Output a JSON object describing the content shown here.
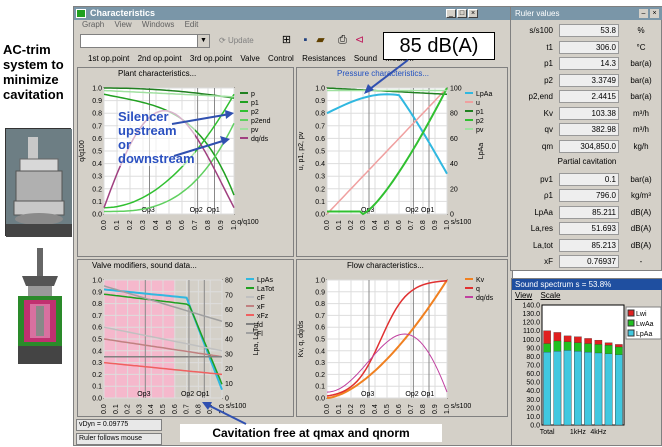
{
  "annotations": {
    "left_title": [
      "AC-trim",
      "system to",
      "minimize",
      "cavitation"
    ],
    "db_callout": "85 dB(A)",
    "silencer": [
      "Silencer",
      "upstream",
      "or",
      "downstream"
    ],
    "cavitation_free": "Cavitation free at qmax and qnorm"
  },
  "window": {
    "title": "Characteristics",
    "menu": [
      "Graph",
      "View",
      "Windows",
      "Edit"
    ],
    "update_label": "Update",
    "tabs": [
      "1st op.point",
      "2nd op.point",
      "3rd op.point",
      "Valve",
      "Control",
      "Resistances",
      "Sound",
      "Medium"
    ],
    "status": [
      "vDyn = 0.09775",
      "Ruler follows mouse"
    ]
  },
  "panels": {
    "plant": {
      "title": "Plant characteristics...",
      "ylabel": "q/q100",
      "xlabel": "q/q100",
      "yticks": [
        "1.0",
        "0.9",
        "0.8",
        "0.7",
        "0.6",
        "0.5",
        "0.4",
        "0.3",
        "0.2",
        "0.1",
        "0.0"
      ],
      "xticks": [
        "0.0",
        "0.1",
        "0.2",
        "0.3",
        "0.4",
        "0.5",
        "0.6",
        "0.7",
        "0.8",
        "0.9",
        "1.0"
      ],
      "legend": [
        "p",
        "p1",
        "p2",
        "p2end",
        "pv",
        "dq/ds"
      ],
      "op_labels": [
        "Op3",
        "Op2",
        "Op1"
      ]
    },
    "pressure": {
      "title": "Pressure characteristics...",
      "ylabel": "u, p1, p2, pv",
      "y2label": "LpAa",
      "xlabel": "s/s100",
      "yticks": [
        "1.0",
        "0.9",
        "0.8",
        "0.7",
        "0.6",
        "0.5",
        "0.4",
        "0.3",
        "0.2",
        "0.1",
        "0.0"
      ],
      "y2ticks": [
        "100",
        "80",
        "60",
        "40",
        "20",
        "0"
      ],
      "xticks": [
        "0.0",
        "0.1",
        "0.2",
        "0.3",
        "0.4",
        "0.5",
        "0.6",
        "0.7",
        "0.8",
        "0.9",
        "1.0"
      ],
      "legend": [
        "LpAa",
        "u",
        "p1",
        "p2",
        "pv"
      ],
      "op_labels": [
        "Op3",
        "Op2",
        "Op1"
      ]
    },
    "valve": {
      "title": "Valve modifiers, sound data...",
      "y2label": "Lpa, LaTot",
      "xlabel": "s/s100",
      "yticks": [
        "1.0",
        "0.9",
        "0.8",
        "0.7",
        "0.6",
        "0.5",
        "0.4",
        "0.3",
        "0.2",
        "0.1",
        "0.0"
      ],
      "y2ticks": [
        "80",
        "70",
        "60",
        "50",
        "40",
        "30",
        "20",
        "10",
        "0"
      ],
      "xticks": [
        "0.0",
        "0.1",
        "0.2",
        "0.3",
        "0.4",
        "0.5",
        "0.6",
        "0.7",
        "0.8",
        "0.9",
        "1.0"
      ],
      "legend": [
        "LpAs",
        "LaTot",
        "cF",
        "xF",
        "xFz",
        "fd",
        "Fl"
      ],
      "op_labels": [
        "Op3",
        "Op2",
        "Op1"
      ]
    },
    "flow": {
      "title": "Flow characteristics...",
      "ylabel": "Kv, q, dq/ds",
      "xlabel": "s/s100",
      "yticks": [
        "1.0",
        "0.9",
        "0.8",
        "0.7",
        "0.6",
        "0.5",
        "0.4",
        "0.3",
        "0.2",
        "0.1",
        "0.0"
      ],
      "xticks": [
        "0.0",
        "0.1",
        "0.2",
        "0.3",
        "0.4",
        "0.5",
        "0.6",
        "0.7",
        "0.8",
        "0.9",
        "1.0"
      ],
      "legend": [
        "Kv",
        "q",
        "dq/ds"
      ],
      "op_labels": [
        "Op3",
        "Op2",
        "Op1"
      ]
    }
  },
  "ruler": {
    "title": "Ruler values",
    "rows": [
      {
        "label": "s/s100",
        "value": "53.8",
        "unit": "%"
      },
      {
        "label": "t1",
        "value": "306.0",
        "unit": "°C"
      },
      {
        "label": "p1",
        "value": "14.3",
        "unit": "bar(a)"
      },
      {
        "label": "p2",
        "value": "3.3749",
        "unit": "bar(a)"
      },
      {
        "label": "p2,end",
        "value": "2.4415",
        "unit": "bar(a)"
      },
      {
        "label": "Kv",
        "value": "103.38",
        "unit": "m³/h"
      },
      {
        "label": "qv",
        "value": "382.98",
        "unit": "m³/h"
      },
      {
        "label": "qm",
        "value": "304,850.0",
        "unit": "kg/h"
      },
      {
        "label": "",
        "value": "Partial cavitation",
        "unit": ""
      },
      {
        "label": "pv1",
        "value": "0.1",
        "unit": "bar(a)"
      },
      {
        "label": "ρ1",
        "value": "796.0",
        "unit": "kg/m³"
      },
      {
        "label": "LpAa",
        "value": "85.211",
        "unit": "dB(A)"
      },
      {
        "label": "La,res",
        "value": "51.693",
        "unit": "dB(A)"
      },
      {
        "label": "La,tot",
        "value": "85.213",
        "unit": "dB(A)"
      },
      {
        "label": "xF",
        "value": "0.76937",
        "unit": "-"
      }
    ]
  },
  "sound": {
    "title": "Sound spectrum s = 53.8%",
    "menu": [
      "View",
      "Scale"
    ],
    "yticks": [
      "140.0",
      "130.0",
      "120.0",
      "110.0",
      "100.0",
      "90.0",
      "80.0",
      "70.0",
      "60.0",
      "50.0",
      "40.0",
      "30.0",
      "20.0",
      "10.0",
      "0.0"
    ],
    "xticks": [
      "Total",
      "1kHz",
      "4kHz"
    ],
    "legend": [
      "Lwi",
      "LwAa",
      "LpAa"
    ],
    "colors": {
      "Lwi": "#e02020",
      "LwAa": "#20c020",
      "LpAa": "#40c8e0"
    },
    "chart_data": {
      "type": "bar",
      "ylim": [
        0,
        140
      ],
      "series": [
        {
          "name": "Lwi",
          "values": [
            110,
            108,
            104,
            103,
            101,
            99,
            96,
            94
          ]
        },
        {
          "name": "LwAa",
          "values": [
            95,
            98,
            97,
            96,
            95,
            94,
            93,
            91
          ]
        },
        {
          "name": "LpAa",
          "values": [
            85,
            86,
            87,
            86,
            85,
            84,
            83,
            82
          ]
        }
      ]
    }
  }
}
